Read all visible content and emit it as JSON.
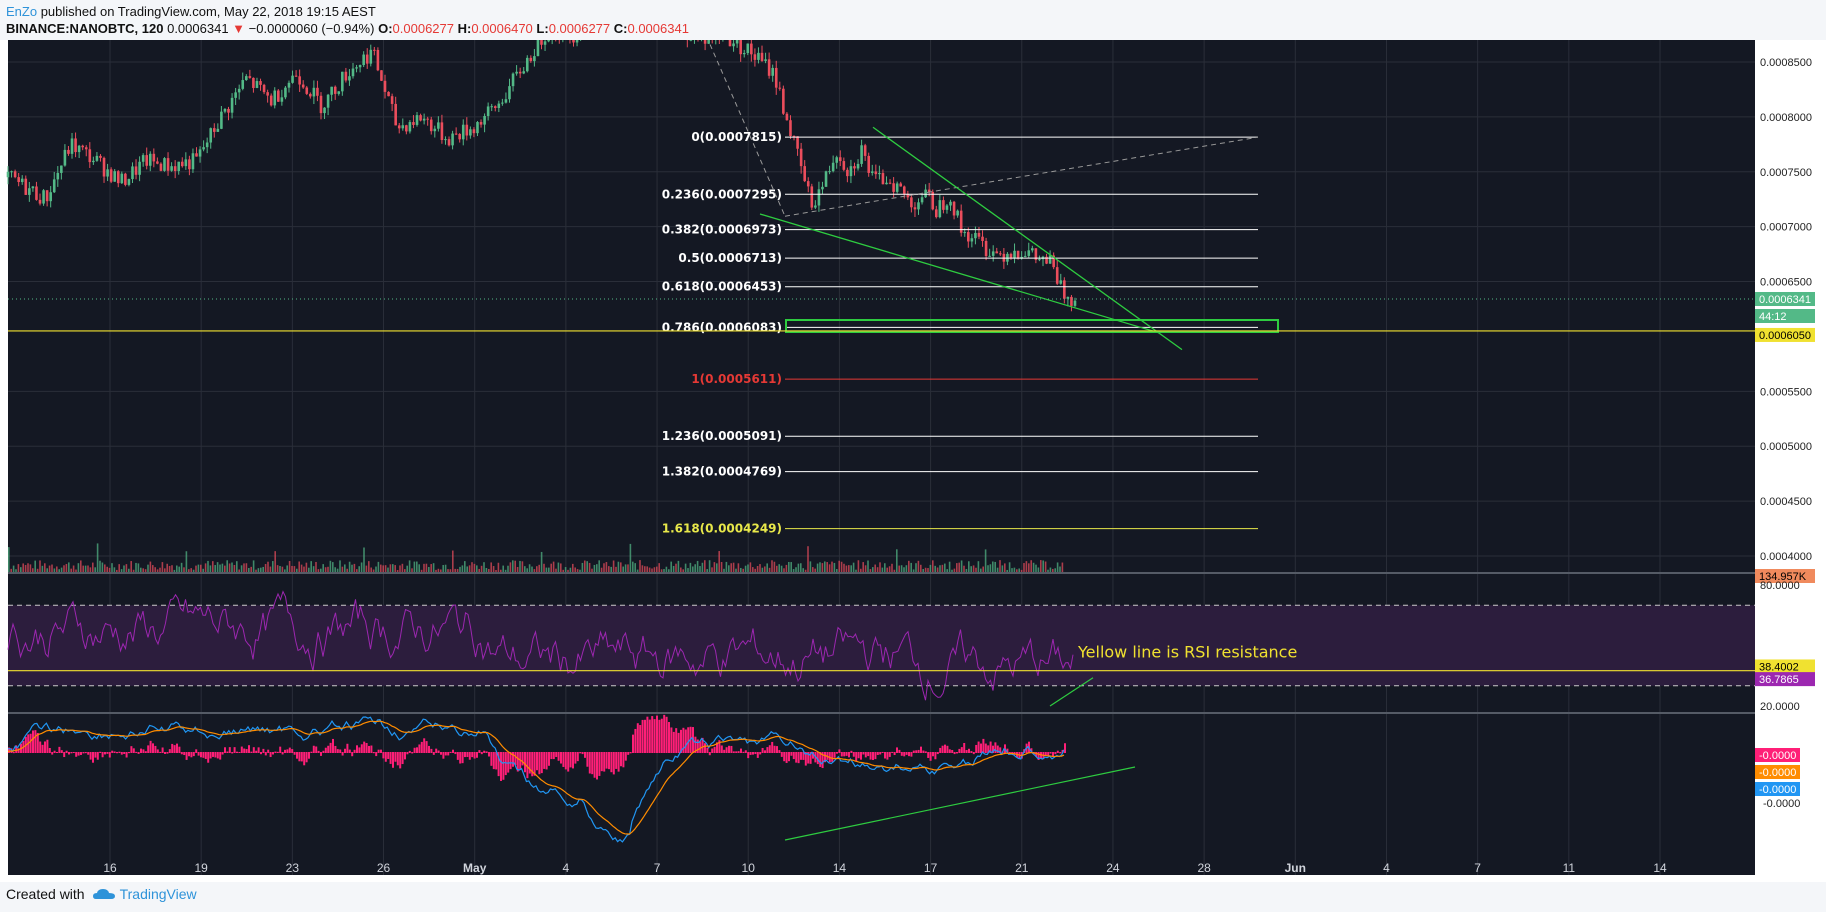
{
  "header": {
    "author": "EnZo",
    "published": "published on TradingView.com, May 22, 2018 19:15 AEST",
    "symbol": "BINANCE:NANOBTC, 120",
    "last": "0.0006341",
    "change": "−0.0000060 (−0.94%)",
    "o_label": "O:",
    "o_value": "0.0006277",
    "h_label": "H:",
    "h_value": "0.0006470",
    "l_label": "L:",
    "l_value": "0.0006277",
    "c_label": "C:",
    "c_value": "0.0006341"
  },
  "footer": {
    "created_with": "Created with",
    "brand": "TradingView"
  },
  "colors": {
    "background": "#141823",
    "up": "#53b987",
    "down": "#eb4d5c",
    "grid": "#2a2e39",
    "axis_text": "#ffffff",
    "fib_line": "#ffffff",
    "fib_red": "#e53935",
    "fib_yellow": "#e8e84a",
    "trendline": "#2ecc40",
    "yellow_line": "#f0e130",
    "rsi": "#9c27b0",
    "rsi_band": "#2c1d3d",
    "macd_hist": "#ff1f77",
    "macd_line": "#2196f3",
    "signal_line": "#ff8c00"
  },
  "chart_data": {
    "type": "candlestick",
    "x_ticks": [
      "16",
      "19",
      "23",
      "26",
      "May",
      "4",
      "7",
      "10",
      "14",
      "17",
      "21",
      "24",
      "28",
      "Jun",
      "4",
      "7",
      "11",
      "14"
    ],
    "price_axis": {
      "ticks": [
        "0.0008500",
        "0.0008000",
        "0.0007500",
        "0.0007000",
        "0.0006500",
        "0.0005500",
        "0.0005000",
        "0.0004500",
        "0.0004000"
      ],
      "ylim": [
        0.00039,
        0.00087
      ],
      "last_price_label": "0.0006341",
      "countdown_label": "44:12",
      "support_label": "0.0006050",
      "volume_label": "134.957K"
    },
    "price_path": [
      [
        0,
        0.000745
      ],
      [
        3,
        0.000725
      ],
      [
        5,
        0.000775
      ],
      [
        7,
        0.00076
      ],
      [
        9,
        0.00074
      ],
      [
        11,
        0.00076
      ],
      [
        13,
        0.000755
      ],
      [
        15,
        0.00076
      ],
      [
        17,
        0.0008
      ],
      [
        19,
        0.000835
      ],
      [
        21,
        0.000815
      ],
      [
        23,
        0.00084
      ],
      [
        25,
        0.00081
      ],
      [
        27,
        0.00084
      ],
      [
        29,
        0.00086
      ],
      [
        31,
        0.00079
      ],
      [
        33,
        0.0008
      ],
      [
        35,
        0.00078
      ],
      [
        37,
        0.00079
      ],
      [
        39,
        0.00081
      ],
      [
        41,
        0.000845
      ],
      [
        43,
        0.00088
      ],
      [
        45,
        0.000875
      ],
      [
        47,
        0.000885
      ],
      [
        53,
        0.000885
      ],
      [
        55,
        0.00087
      ],
      [
        57,
        0.000875
      ],
      [
        59,
        0.00086
      ],
      [
        61,
        0.00084
      ],
      [
        62,
        0.0008
      ],
      [
        63,
        0.00076
      ],
      [
        64,
        0.00072
      ],
      [
        65,
        0.00074
      ],
      [
        66,
        0.00077
      ],
      [
        67,
        0.00075
      ],
      [
        68,
        0.00077
      ],
      [
        69,
        0.00074
      ],
      [
        70,
        0.000745
      ],
      [
        71,
        0.000735
      ],
      [
        72,
        0.00072
      ],
      [
        73,
        0.00073
      ],
      [
        74,
        0.000715
      ],
      [
        75,
        0.00073
      ],
      [
        76,
        0.000695
      ],
      [
        77,
        0.00069
      ],
      [
        78,
        0.00068
      ],
      [
        79,
        0.000675
      ],
      [
        80,
        0.000678
      ],
      [
        81,
        0.000678
      ],
      [
        82,
        0.00067
      ],
      [
        83,
        0.000668
      ],
      [
        84,
        0.00064
      ],
      [
        85,
        0.000634
      ]
    ],
    "price_x_range": [
      0,
      85
    ],
    "fibonacci": [
      {
        "label": "0(0.0007815)",
        "value": 0.0007815,
        "style": "white"
      },
      {
        "label": "0.236(0.0007295)",
        "value": 0.0007295,
        "style": "white"
      },
      {
        "label": "0.382(0.0006973)",
        "value": 0.0006973,
        "style": "white"
      },
      {
        "label": "0.5(0.0006713)",
        "value": 0.0006713,
        "style": "white"
      },
      {
        "label": "0.618(0.0006453)",
        "value": 0.0006453,
        "style": "white"
      },
      {
        "label": "0.786(0.0006083)",
        "value": 0.0006083,
        "style": "white"
      },
      {
        "label": "1(0.0005611)",
        "value": 0.0005611,
        "style": "red"
      },
      {
        "label": "1.236(0.0005091)",
        "value": 0.0005091,
        "style": "white"
      },
      {
        "label": "1.382(0.0004769)",
        "value": 0.0004769,
        "style": "white"
      },
      {
        "label": "1.618(0.0004249)",
        "value": 0.0004249,
        "style": "yellow"
      }
    ],
    "support_level": 0.000605,
    "rsi": {
      "axis_ticks": [
        "80.0000",
        "20.0000"
      ],
      "ylim": [
        17,
        85
      ],
      "upper_band": 70,
      "lower_band": 30,
      "value_label_1": "38.4002",
      "value_label_2": "36.7865",
      "resistance": 37.5,
      "annotation": "Yellow line is RSI resistance"
    },
    "macd": {
      "axis_ticks": [
        "-0.0000"
      ],
      "labels": [
        "-0.0000",
        "-0.0000",
        "-0.0000"
      ]
    }
  }
}
